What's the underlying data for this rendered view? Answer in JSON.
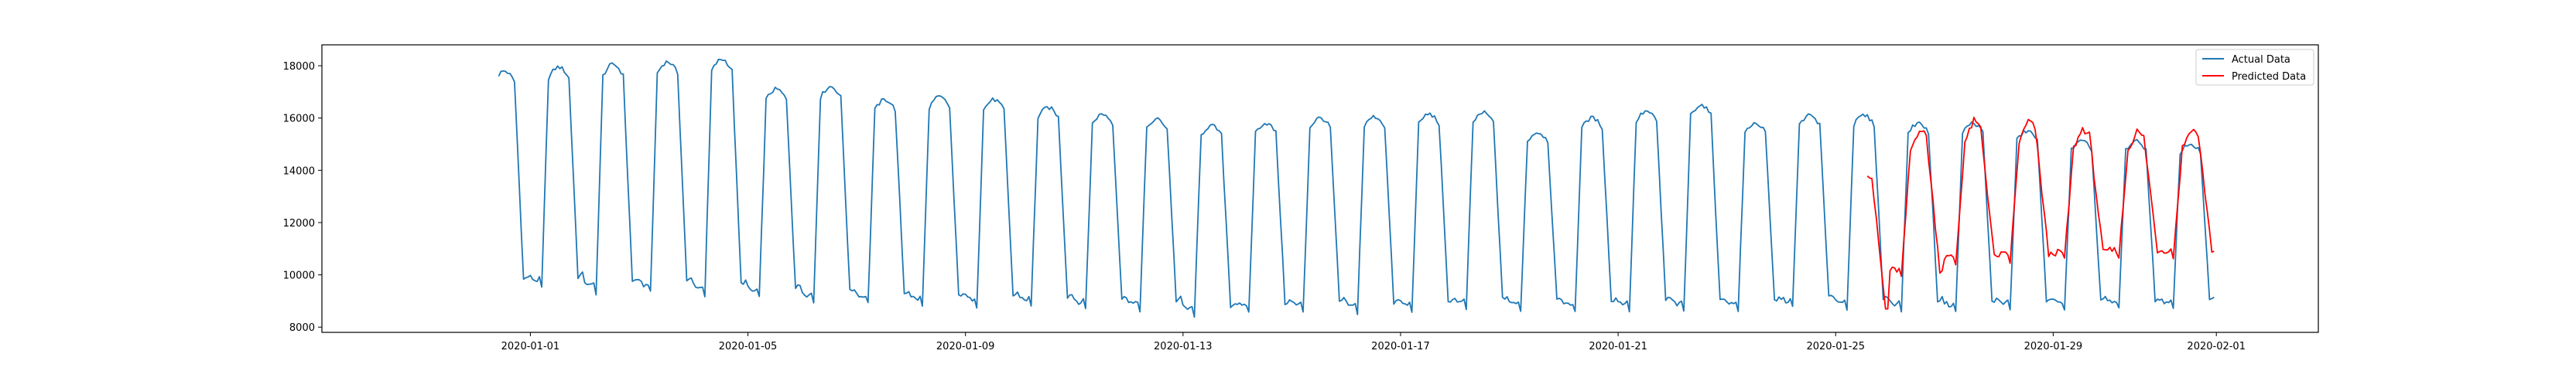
{
  "chart_data": {
    "type": "line",
    "title": "",
    "xlabel": "",
    "ylabel": "",
    "xlim": [
      "2019-12-28T04:00",
      "2020-02-02T21:00"
    ],
    "ylim": [
      7800,
      18800
    ],
    "grid": false,
    "legend_position": "top-right",
    "x_ticks": [
      "2020-01-01",
      "2020-01-05",
      "2020-01-09",
      "2020-01-13",
      "2020-01-17",
      "2020-01-21",
      "2020-01-25",
      "2020-01-29",
      "2020-02-01"
    ],
    "y_ticks": [
      8000,
      10000,
      12000,
      14000,
      16000,
      18000
    ],
    "series": [
      {
        "name": "Actual Data",
        "color": "#1f77b4",
        "start": "2019-12-31T10:00",
        "end": "2020-01-31T23:00",
        "anchors": [
          {
            "date": "2019-12-31",
            "peak": 17800,
            "trough": 9400
          },
          {
            "date": "2020-01-01",
            "peak": 17950,
            "trough": 9500
          },
          {
            "date": "2020-01-02",
            "peak": 18050,
            "trough": 9300
          },
          {
            "date": "2020-01-03",
            "peak": 18150,
            "trough": 9300
          },
          {
            "date": "2020-01-04",
            "peak": 18250,
            "trough": 9200
          },
          {
            "date": "2020-01-05",
            "peak": 17100,
            "trough": 9100
          },
          {
            "date": "2020-01-06",
            "peak": 17200,
            "trough": 8950
          },
          {
            "date": "2020-01-07",
            "peak": 16700,
            "trough": 8900
          },
          {
            "date": "2020-01-08",
            "peak": 16800,
            "trough": 8800
          },
          {
            "date": "2020-01-09",
            "peak": 16700,
            "trough": 8800
          },
          {
            "date": "2020-01-10",
            "peak": 16400,
            "trough": 8800
          },
          {
            "date": "2020-01-11",
            "peak": 16150,
            "trough": 8700
          },
          {
            "date": "2020-01-12",
            "peak": 15950,
            "trough": 8650
          },
          {
            "date": "2020-01-13",
            "peak": 15700,
            "trough": 8450
          },
          {
            "date": "2020-01-14",
            "peak": 15800,
            "trough": 8550
          },
          {
            "date": "2020-01-15",
            "peak": 16000,
            "trough": 8600
          },
          {
            "date": "2020-01-16",
            "peak": 16050,
            "trough": 8550
          },
          {
            "date": "2020-01-17",
            "peak": 16150,
            "trough": 8600
          },
          {
            "date": "2020-01-18",
            "peak": 16200,
            "trough": 8700
          },
          {
            "date": "2020-01-19",
            "peak": 15450,
            "trough": 8650
          },
          {
            "date": "2020-01-20",
            "peak": 16000,
            "trough": 8600
          },
          {
            "date": "2020-01-21",
            "peak": 16250,
            "trough": 8650
          },
          {
            "date": "2020-01-22",
            "peak": 16500,
            "trough": 8600
          },
          {
            "date": "2020-01-23",
            "peak": 15800,
            "trough": 8650
          },
          {
            "date": "2020-01-24",
            "peak": 16100,
            "trough": 8750
          },
          {
            "date": "2020-01-25",
            "peak": 16100,
            "trough": 8700
          },
          {
            "date": "2020-01-26",
            "peak": 15800,
            "trough": 8650
          },
          {
            "date": "2020-01-27",
            "peak": 15800,
            "trough": 8600
          },
          {
            "date": "2020-01-28",
            "peak": 15500,
            "trough": 8700
          },
          {
            "date": "2020-01-29",
            "peak": 15100,
            "trough": 8700
          },
          {
            "date": "2020-01-30",
            "peak": 15100,
            "trough": 8700
          },
          {
            "date": "2020-01-31",
            "peak": 15000,
            "trough": 8700
          }
        ]
      },
      {
        "name": "Predicted Data",
        "color": "#ff0000",
        "start": "2020-01-25T14:00",
        "end": "2020-01-31T23:00",
        "anchors": [
          {
            "date": "2020-01-25",
            "peak": 14000,
            "trough": 8400
          },
          {
            "date": "2020-01-26",
            "peak": 15600,
            "trough": 9900
          },
          {
            "date": "2020-01-27",
            "peak": 15900,
            "trough": 10400
          },
          {
            "date": "2020-01-28",
            "peak": 15900,
            "trough": 10500
          },
          {
            "date": "2020-01-29",
            "peak": 15600,
            "trough": 10600
          },
          {
            "date": "2020-01-30",
            "peak": 15500,
            "trough": 10700
          },
          {
            "date": "2020-01-31",
            "peak": 15600,
            "trough": 10700
          }
        ]
      }
    ]
  }
}
